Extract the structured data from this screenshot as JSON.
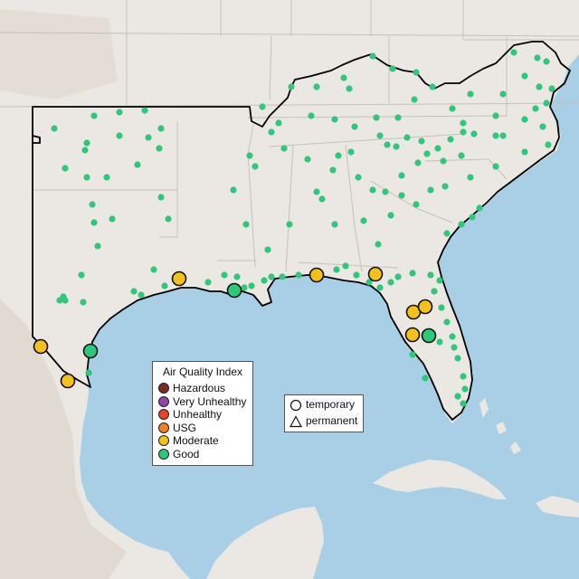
{
  "colors": {
    "water": "#a9cfe6",
    "land": "#ebe7e2",
    "terrain": "#ddd7cf",
    "state_lines": "#c6c1bb",
    "region_outline": "#000000",
    "Good": "#2ec87a",
    "Moderate": "#f2c21b",
    "USG": "#f07e22",
    "Unhealthy": "#e8412c",
    "Very Unhealthy": "#8e44ad",
    "Hazardous": "#7b2c1e"
  },
  "aqi_legend": {
    "title": "Air Quality Index",
    "items": [
      {
        "label": "Hazardous",
        "color": "#7b2c1e"
      },
      {
        "label": "Very Unhealthy",
        "color": "#8e44ad"
      },
      {
        "label": "Unhealthy",
        "color": "#e8412c"
      },
      {
        "label": "USG",
        "color": "#f07e22"
      },
      {
        "label": "Moderate",
        "color": "#f2c21b"
      },
      {
        "label": "Good",
        "color": "#2ec87a"
      }
    ]
  },
  "monitor_legend": {
    "items": [
      {
        "label": "temporary",
        "shape": "circle-icon"
      },
      {
        "label": "permanent",
        "shape": "triangle-icon"
      }
    ]
  },
  "temporary_monitor_categories": [
    "Moderate",
    "Moderate",
    "Moderate",
    "Moderate",
    "Moderate",
    "Moderate",
    "Moderate",
    "Moderate",
    "Moderate",
    "Good",
    "Good",
    "Good"
  ],
  "permanent_monitor_category": "Good"
}
